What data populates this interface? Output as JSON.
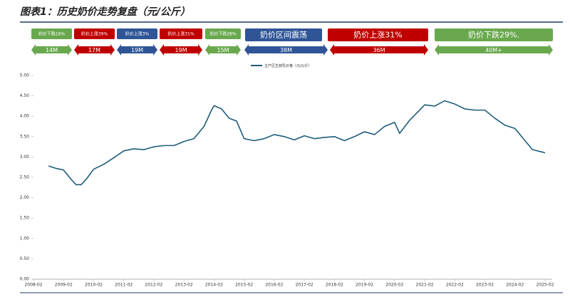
{
  "chart_data": {
    "type": "line",
    "title": "图表1：历史奶价走势复盘（元/公斤）",
    "phases": [
      {
        "label": "奶价下跌16%",
        "duration": "14M",
        "color": "#6aa84f"
      },
      {
        "label": "奶价上涨39%",
        "duration": "17M",
        "color": "#c00000"
      },
      {
        "label": "奶价上涨3%",
        "duration": "19M",
        "color": "#2f5597"
      },
      {
        "label": "奶价上涨31%",
        "duration": "19M",
        "color": "#c00000"
      },
      {
        "label": "奶价下跌28%",
        "duration": "15M",
        "color": "#6aa84f"
      },
      {
        "label": "奶价区间震荡",
        "duration": "38M",
        "color": "#2f5597"
      },
      {
        "label": "奶价上涨31%",
        "duration": "36M",
        "color": "#c00000"
      },
      {
        "label": "奶价下跌29%.",
        "duration": "40M+",
        "color": "#6aa84f"
      }
    ],
    "x": [
      "2008-08",
      "2008-11",
      "2009-02",
      "2009-05",
      "2009-07",
      "2009-09",
      "2009-11",
      "2010-02",
      "2010-06",
      "2010-10",
      "2011-02",
      "2011-06",
      "2011-10",
      "2012-02",
      "2012-06",
      "2012-10",
      "2013-02",
      "2013-06",
      "2013-10",
      "2014-01",
      "2014-02",
      "2014-05",
      "2014-08",
      "2014-11",
      "2015-02",
      "2015-06",
      "2015-10",
      "2016-02",
      "2016-06",
      "2016-10",
      "2017-02",
      "2017-06",
      "2017-10",
      "2018-02",
      "2018-06",
      "2018-10",
      "2019-02",
      "2019-06",
      "2019-10",
      "2020-02",
      "2020-04",
      "2020-08",
      "2021-02",
      "2021-06",
      "2021-10",
      "2022-02",
      "2022-06",
      "2022-10",
      "2023-02",
      "2023-06",
      "2023-10",
      "2024-02",
      "2024-06",
      "2024-09",
      "2025-01",
      "2025-02"
    ],
    "series": [
      {
        "name": "主产区生鲜乳价格（元/公斤）",
        "color": "#1f5c7a",
        "values": [
          2.78,
          2.72,
          2.68,
          2.45,
          2.32,
          2.32,
          2.45,
          2.7,
          2.82,
          2.98,
          3.15,
          3.2,
          3.18,
          3.25,
          3.28,
          3.28,
          3.38,
          3.45,
          3.75,
          4.15,
          4.26,
          4.18,
          3.95,
          3.88,
          3.45,
          3.4,
          3.45,
          3.55,
          3.5,
          3.42,
          3.52,
          3.45,
          3.48,
          3.5,
          3.4,
          3.5,
          3.62,
          3.55,
          3.75,
          3.85,
          3.58,
          3.9,
          4.28,
          4.25,
          4.38,
          4.3,
          4.18,
          4.15,
          4.15,
          3.95,
          3.78,
          3.7,
          3.4,
          3.18,
          3.12,
          3.1
        ]
      }
    ],
    "xlim": [
      "2008-02",
      "2025-02"
    ],
    "xticks": [
      "2008-02",
      "2009-02",
      "2010-02",
      "2011-02",
      "2012-02",
      "2013-02",
      "2014-02",
      "2015-02",
      "2016-02",
      "2017-02",
      "2018-02",
      "2019-02",
      "2020-02",
      "2021-02",
      "2022-02",
      "2023-02",
      "2024-02",
      "2025-02"
    ],
    "ylim": [
      0,
      5
    ],
    "yticks": [
      {
        "value": 0,
        "label": "0.00"
      },
      {
        "value": 0.5,
        "label": "0.50"
      },
      {
        "value": 1,
        "label": "1.00"
      },
      {
        "value": 1.5,
        "label": "1.50"
      },
      {
        "value": 2,
        "label": "2.00"
      },
      {
        "value": 2.5,
        "label": "2.50"
      },
      {
        "value": 3,
        "label": "3.00"
      },
      {
        "value": 3.5,
        "label": "3.50"
      },
      {
        "value": 4,
        "label": "4.00"
      },
      {
        "value": 4.5,
        "label": "4.50"
      },
      {
        "value": 5,
        "label": "5.00"
      }
    ]
  }
}
